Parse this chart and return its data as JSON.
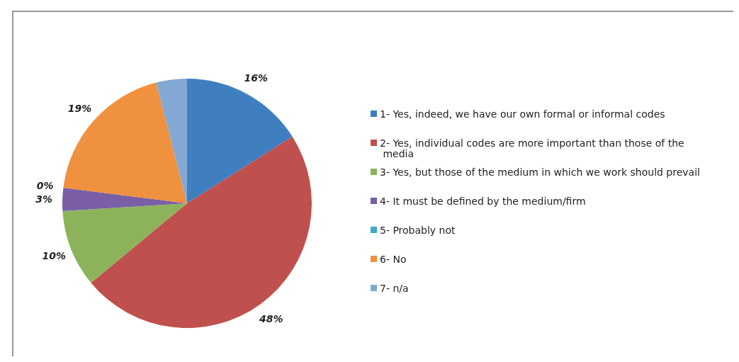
{
  "chart_data": {
    "type": "pie",
    "categories": [
      "1- Yes, indeed, we have our own formal or informal codes",
      "2- Yes, individual codes are more important than those of the media",
      "3- Yes, but those of the medium in which we work should prevail",
      "4- It must be defined by the medium/firm",
      "5- Probably not",
      "6- No",
      "7- n/a"
    ],
    "values": [
      16,
      48,
      10,
      3,
      0,
      19,
      4
    ],
    "colors": [
      "#3f7fbf",
      "#c0504d",
      "#8db35a",
      "#7a5fa6",
      "#3aacc5",
      "#f0913f",
      "#84a8d4"
    ],
    "value_labels": [
      "16%",
      "48%",
      "10%",
      "3%",
      "0%",
      "19%",
      null
    ],
    "legend": "right"
  }
}
